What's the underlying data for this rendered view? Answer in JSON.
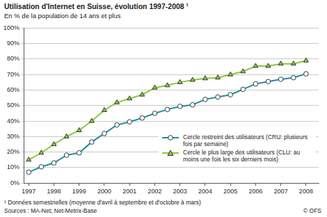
{
  "chart_data": {
    "type": "line",
    "title": "Utilisation d'Internet en Suisse, évolution 1997-2008 ¹",
    "subtitle": "En % de la population de 14 ans et plus",
    "x": [
      1997,
      1997.5,
      1998,
      1998.5,
      1999,
      1999.5,
      2000,
      2000.5,
      2001,
      2001.5,
      2002,
      2002.5,
      2003,
      2003.5,
      2004,
      2004.5,
      2005,
      2005.5,
      2006,
      2006.5,
      2007,
      2007.5,
      2008
    ],
    "xlim": [
      1996.8,
      2008.5
    ],
    "xticks": [
      1997,
      1998,
      1999,
      2000,
      2001,
      2002,
      2003,
      2004,
      2005,
      2006,
      2007,
      2008
    ],
    "ylim": [
      0,
      100
    ],
    "yticks": [
      {
        "value": 0,
        "label": "0%"
      },
      {
        "value": 10,
        "label": "10%"
      },
      {
        "value": 20,
        "label": "20%"
      },
      {
        "value": 30,
        "label": "30%"
      },
      {
        "value": 40,
        "label": "40%"
      },
      {
        "value": 50,
        "label": "50%"
      },
      {
        "value": 60,
        "label": "60%"
      },
      {
        "value": 70,
        "label": "70%"
      },
      {
        "value": 80,
        "label": "80%"
      },
      {
        "value": 90,
        "label": "90%"
      },
      {
        "value": 100,
        "label": "100%"
      }
    ],
    "series": [
      {
        "name": "Cercle restreint des utilisateurs (CRU: plusieurs fois par semaine)",
        "color": "#1f8ca3",
        "marker": "circle",
        "values": [
          7,
          10.5,
          13,
          18,
          19.5,
          26.5,
          32,
          37.5,
          39.5,
          42,
          45,
          47.5,
          49.5,
          50.5,
          54,
          55.5,
          57,
          60.5,
          64,
          65.5,
          67,
          68,
          70.5
        ]
      },
      {
        "name": "Cercle le plus large des utilisateurs (CLU: au moins une fois les six derniers mois)",
        "color": "#8cc63f",
        "marker": "triangle",
        "values": [
          15,
          19.5,
          25,
          30,
          34,
          40,
          47,
          52,
          54.5,
          57,
          61.5,
          63,
          65,
          66.5,
          67.5,
          68,
          70,
          72,
          75.5,
          75.5,
          77,
          77,
          79
        ]
      }
    ],
    "grid": true,
    "legend": "lower right",
    "footnote": "¹ Données semestrielles (moyenne d'avril à septembre et d'octobre à mars)",
    "source": "Sources : MA-Net; Net-Metrix-Base",
    "credit": "© OFS"
  }
}
